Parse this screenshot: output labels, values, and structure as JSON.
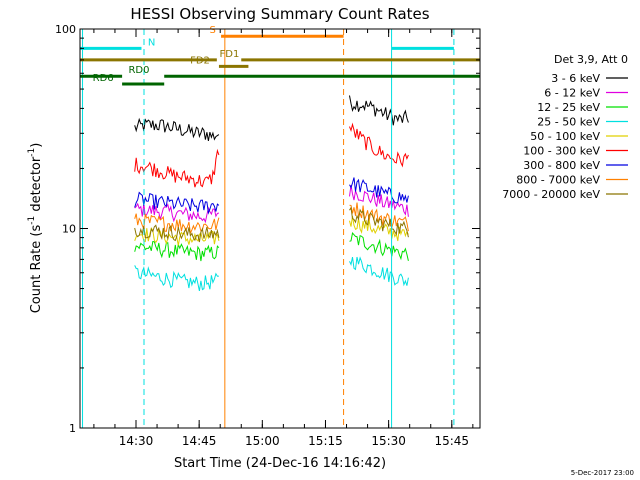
{
  "chart_data": {
    "type": "line",
    "title": "HESSI Observing Summary Count Rates",
    "xlabel": "Start Time (24-Dec-16 14:16:42)",
    "ylabel_main": "Count Rate (s",
    "ylabel_sup1": "-1",
    "ylabel_mid": " detector",
    "ylabel_sup2": "-1",
    "ylabel_end": ")",
    "y_scale": "log",
    "ylim": [
      1,
      100
    ],
    "xlim_minutes": [
      0,
      95
    ],
    "y_ticks": [
      {
        "value": 1,
        "label": "1"
      },
      {
        "value": 10,
        "label": "10"
      },
      {
        "value": 100,
        "label": "100"
      }
    ],
    "x_ticks": [
      {
        "value": 13.3,
        "label": "14:30"
      },
      {
        "value": 28.3,
        "label": "14:45"
      },
      {
        "value": 43.3,
        "label": "15:00"
      },
      {
        "value": 58.3,
        "label": "15:15"
      },
      {
        "value": 73.3,
        "label": "15:30"
      },
      {
        "value": 88.3,
        "label": "15:45"
      }
    ],
    "legend_title": "Det 3,9, Att 0",
    "legend_position": "right",
    "series": [
      {
        "name": "3 - 6 keV",
        "color": "#000000",
        "segments": [
          {
            "x": [
              13,
              16,
              19,
              22,
              25,
              28,
              30,
              31.5,
              33
            ],
            "y": [
              32,
              33,
              33,
              32,
              31,
              30,
              30,
              29,
              30
            ]
          },
          {
            "x": [
              64,
              67,
              70,
              73,
              76,
              78
            ],
            "y": [
              43,
              42,
              40,
              37,
              35,
              36
            ]
          }
        ]
      },
      {
        "name": "6 - 12 keV",
        "color": "#e000e0",
        "segments": [
          {
            "x": [
              13,
              17,
              21,
              25,
              29,
              33
            ],
            "y": [
              12.5,
              12.3,
              12.1,
              11.8,
              11.5,
              12
            ]
          },
          {
            "x": [
              64,
              68,
              72,
              76,
              78
            ],
            "y": [
              15.5,
              14.5,
              13.5,
              12.8,
              12.5
            ]
          }
        ]
      },
      {
        "name": "12 - 25 keV",
        "color": "#00e000",
        "segments": [
          {
            "x": [
              13,
              17,
              21,
              25,
              29,
              33
            ],
            "y": [
              8.2,
              8,
              7.8,
              7.6,
              7.5,
              7.6
            ]
          },
          {
            "x": [
              64,
              68,
              72,
              76,
              78
            ],
            "y": [
              9,
              8.5,
              8,
              7.6,
              7.5
            ]
          }
        ]
      },
      {
        "name": "25 - 50 keV",
        "color": "#00e0e0",
        "segments": [
          {
            "x": [
              13,
              17,
              21,
              25,
              29,
              33
            ],
            "y": [
              6,
              5.8,
              5.6,
              5.4,
              5.3,
              5.5
            ]
          },
          {
            "x": [
              64,
              68,
              72,
              76,
              78
            ],
            "y": [
              7,
              6.5,
              6,
              5.6,
              5.4
            ]
          }
        ]
      },
      {
        "name": "50 - 100 keV",
        "color": "#e0d000",
        "segments": [
          {
            "x": [
              13,
              17,
              21,
              25,
              29,
              33
            ],
            "y": [
              9.5,
              9.3,
              9.1,
              8.9,
              8.8,
              9
            ]
          },
          {
            "x": [
              64,
              68,
              72,
              76,
              78
            ],
            "y": [
              11,
              10.3,
              9.8,
              9.4,
              9.2
            ]
          }
        ]
      },
      {
        "name": "100 - 300 keV",
        "color": "#ff0000",
        "segments": [
          {
            "x": [
              13,
              16,
              19,
              22,
              25,
              28,
              30,
              31.5,
              33
            ],
            "y": [
              21,
              20.5,
              19.5,
              18.5,
              18,
              17.5,
              17,
              18,
              25
            ]
          },
          {
            "x": [
              64,
              67,
              70,
              73,
              76,
              78
            ],
            "y": [
              32,
              28,
              25,
              23,
              22,
              22.5
            ]
          }
        ]
      },
      {
        "name": "300 - 800 keV",
        "color": "#0000e0",
        "segments": [
          {
            "x": [
              13,
              17,
              21,
              25,
              29,
              33
            ],
            "y": [
              14,
              13.7,
              13.4,
              13.1,
              12.9,
              13.2
            ]
          },
          {
            "x": [
              64,
              68,
              72,
              76,
              78
            ],
            "y": [
              17,
              16,
              15,
              14.4,
              14
            ]
          }
        ]
      },
      {
        "name": "800 - 7000 keV",
        "color": "#ff8000",
        "segments": [
          {
            "x": [
              13,
              17,
              21,
              25,
              29,
              33
            ],
            "y": [
              11,
              10.8,
              10.6,
              10.4,
              10.3,
              10.5
            ]
          },
          {
            "x": [
              64,
              68,
              72,
              76,
              78
            ],
            "y": [
              13,
              12,
              11.3,
              10.8,
              10.6
            ]
          }
        ]
      },
      {
        "name": "7000 - 20000 keV",
        "color": "#8b7500",
        "segments": [
          {
            "x": [
              13,
              17,
              21,
              25,
              29,
              33
            ],
            "y": [
              10,
              9.8,
              9.6,
              9.4,
              9.3,
              9.5
            ]
          },
          {
            "x": [
              64,
              68,
              72,
              76,
              78
            ],
            "y": [
              12,
              11.2,
              10.6,
              10.1,
              9.9
            ]
          }
        ]
      }
    ],
    "vertical_markers": [
      {
        "x": 0.6,
        "color": "#00e0e0",
        "style": "solid"
      },
      {
        "x": 15.2,
        "color": "#00e0e0",
        "style": "dashed"
      },
      {
        "x": 34.4,
        "color": "#ff8000",
        "style": "solid"
      },
      {
        "x": 62.6,
        "color": "#ff8000",
        "style": "dashed"
      },
      {
        "x": 74.0,
        "color": "#00e0e0",
        "style": "solid"
      },
      {
        "x": 88.8,
        "color": "#00e0e0",
        "style": "dashed"
      }
    ],
    "flag_bars": [
      {
        "label": "N",
        "color": "#00e0e0",
        "y_value": 80,
        "label_at": 17,
        "segments": [
          [
            0,
            14.6
          ],
          [
            74,
            88.8
          ]
        ]
      },
      {
        "label": "S",
        "color": "#ff8000",
        "y_value": 92,
        "label_at": 31.5,
        "segments": [
          [
            33.5,
            62.6
          ]
        ]
      },
      {
        "label": "FD1",
        "color": "#8b7500",
        "y_value": 70,
        "label_at": 35.5,
        "segments": [
          [
            0,
            32.5
          ],
          [
            38.3,
            95
          ]
        ]
      },
      {
        "label": "FD2",
        "color": "#8b7500",
        "y_value": 65,
        "label_at": 28.5,
        "segments": [
          [
            33,
            40
          ]
        ]
      },
      {
        "label": "RD0",
        "color": "#006400",
        "y_value": 58,
        "label_at": 14,
        "segments": [
          [
            0,
            10
          ],
          [
            20,
            95
          ]
        ]
      },
      {
        "label": "RD6",
        "color": "#006400",
        "y_value": 53,
        "label_at": 5.5,
        "segments": [
          [
            10,
            20
          ]
        ]
      }
    ]
  },
  "footer": {
    "date_stamp": "5-Dec-2017 23:00"
  }
}
